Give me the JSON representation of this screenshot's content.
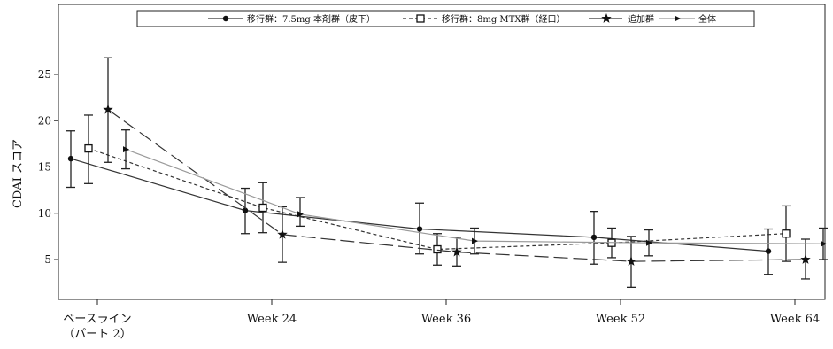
{
  "chart_data": {
    "type": "line",
    "ylabel": "CDAI スコア",
    "ylim": [
      0,
      30
    ],
    "yticks": [
      5,
      10,
      15,
      20,
      25
    ],
    "categories": [
      [
        "ベースライン",
        "（パート 2）"
      ],
      [
        "Week 24"
      ],
      [
        "Week 36"
      ],
      [
        "Week 52"
      ],
      [
        "Week 64"
      ]
    ],
    "series": [
      {
        "name": "移行群：7.5mg 本剤群（皮下）",
        "marker": "circle",
        "line": "solid",
        "color": "#222222",
        "values": [
          15.9,
          10.3,
          8.3,
          7.4,
          5.9
        ],
        "err_low": [
          12.8,
          7.8,
          5.6,
          4.5,
          3.4
        ],
        "err_high": [
          18.9,
          12.7,
          11.1,
          10.2,
          8.3
        ]
      },
      {
        "name": "移行群：8mg MTX群（経口）",
        "marker": "square",
        "line": "dotted",
        "color": "#222222",
        "values": [
          17.0,
          10.6,
          6.1,
          6.8,
          7.8
        ],
        "err_low": [
          13.2,
          7.9,
          4.4,
          5.2,
          4.8
        ],
        "err_high": [
          20.6,
          13.3,
          7.8,
          8.4,
          10.8
        ]
      },
      {
        "name": "追加群",
        "marker": "star",
        "line": "longdash",
        "color": "#222222",
        "values": [
          21.2,
          7.7,
          5.8,
          4.8,
          5.0
        ],
        "err_low": [
          15.5,
          4.7,
          4.3,
          2.0,
          2.9
        ],
        "err_high": [
          26.8,
          10.7,
          7.4,
          7.5,
          7.2
        ]
      },
      {
        "name": "全体",
        "marker": "triangle-right",
        "line": "solid-light",
        "color": "#888888",
        "values": [
          16.9,
          9.9,
          7.0,
          6.8,
          6.7
        ],
        "err_low": [
          14.8,
          8.6,
          5.6,
          5.4,
          5.0
        ],
        "err_high": [
          19.0,
          11.7,
          8.4,
          8.2,
          8.4
        ]
      }
    ],
    "legend": {
      "position": "top"
    },
    "grid": false
  }
}
